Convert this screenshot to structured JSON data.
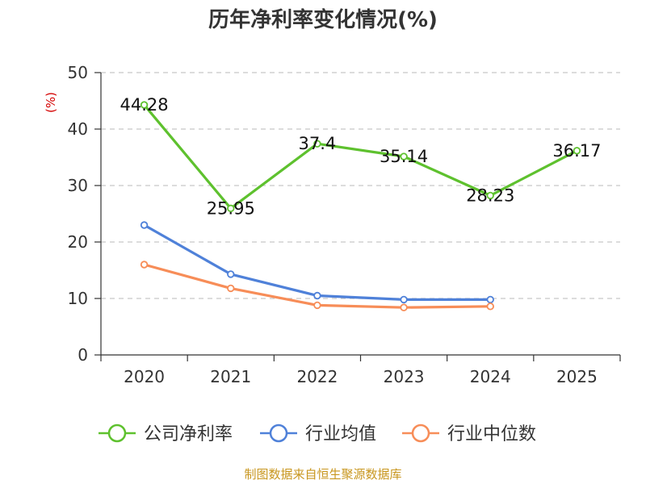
{
  "chart_data": {
    "type": "line",
    "title": "历年净利率变化情况(%)",
    "ylabel": "(%)",
    "xlabel": "",
    "categories": [
      "2020",
      "2021",
      "2022",
      "2023",
      "2024",
      "2025"
    ],
    "yticks": [
      "0",
      "10",
      "20",
      "30",
      "40",
      "50"
    ],
    "ylim": [
      0,
      50
    ],
    "grid": true,
    "legend_position": "bottom",
    "series": [
      {
        "name": "公司净利率",
        "color": "#5ec12e",
        "values": [
          44.28,
          25.95,
          37.4,
          35.14,
          28.23,
          36.17
        ],
        "labels": [
          "44.28",
          "25.95",
          "37.4",
          "35.14",
          "28.23",
          "36.17"
        ]
      },
      {
        "name": "行业均值",
        "color": "#4f81d9",
        "values": [
          23.0,
          14.3,
          10.5,
          9.8,
          9.8,
          null
        ]
      },
      {
        "name": "行业中位数",
        "color": "#f78d58",
        "values": [
          16.0,
          11.8,
          8.8,
          8.4,
          8.6,
          null
        ]
      }
    ]
  },
  "footer": {
    "source": "制图数据来自恒生聚源数据库"
  }
}
